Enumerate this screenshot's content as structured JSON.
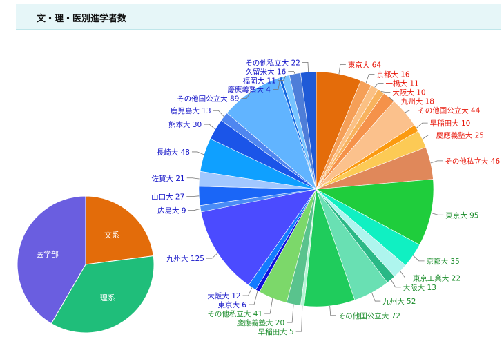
{
  "header": {
    "title": "文・理・医別進学者数"
  },
  "chart_data": [
    {
      "type": "pie",
      "title": "",
      "categories": [
        "文系",
        "理系",
        "医学部"
      ],
      "values": [
        221,
        340,
        400
      ],
      "colors": [
        "#e36c0a",
        "#1fbe7a",
        "#6a5ee0"
      ]
    },
    {
      "type": "pie",
      "title": "",
      "series": [
        {
          "name": "文系",
          "labels": [
            "東京大",
            "京都大",
            "一橋大",
            "大阪大",
            "九州大",
            "その他国公立大",
            "早稲田大",
            "慶應義塾大",
            "その他私立大"
          ],
          "values": [
            64,
            16,
            11,
            10,
            18,
            44,
            10,
            25,
            46
          ],
          "colors": [
            "#e46c0a",
            "#f59f57",
            "#fbc083",
            "#f8b25d",
            "#f5924a",
            "#fbc18c",
            "#fb9a10",
            "#fcca55",
            "#e0885a"
          ],
          "label_color": "#e8190c"
        },
        {
          "name": "理系",
          "labels": [
            "東京大",
            "京都大",
            "東京工業大",
            "大阪大",
            "九州大",
            "その他国公立大",
            "早稲田大",
            "慶應義塾大",
            "その他私立大"
          ],
          "values": [
            95,
            35,
            22,
            13,
            52,
            72,
            5,
            20,
            41
          ],
          "colors": [
            "#1fcd3c",
            "#10f0c2",
            "#aef5ee",
            "#29b886",
            "#69e0b3",
            "#1fcc5c",
            "#b5f5d5",
            "#59c38d",
            "#7cd86a"
          ],
          "label_color": "#1a8c2a"
        },
        {
          "name": "医学部",
          "labels": [
            "東京大",
            "大阪大",
            "九州大",
            "広島大",
            "山口大",
            "佐賀大",
            "長崎大",
            "熊本大",
            "鹿児島大",
            "その他国公立大",
            "慶應義塾大",
            "福岡大",
            "久留米大",
            "その他私立大"
          ],
          "values": [
            6,
            12,
            125,
            9,
            27,
            21,
            48,
            30,
            13,
            89,
            4,
            11,
            16,
            22
          ],
          "colors": [
            "#1010dd",
            "#137bff",
            "#4b4bff",
            "#4b8cf6",
            "#1a66f7",
            "#a1c7ff",
            "#0fa0ff",
            "#1b55e8",
            "#4f86f0",
            "#61b4ff",
            "#1466df",
            "#76c3ff",
            "#4e7ed9",
            "#1f5ad7"
          ],
          "label_color": "#1515c8"
        }
      ]
    }
  ]
}
